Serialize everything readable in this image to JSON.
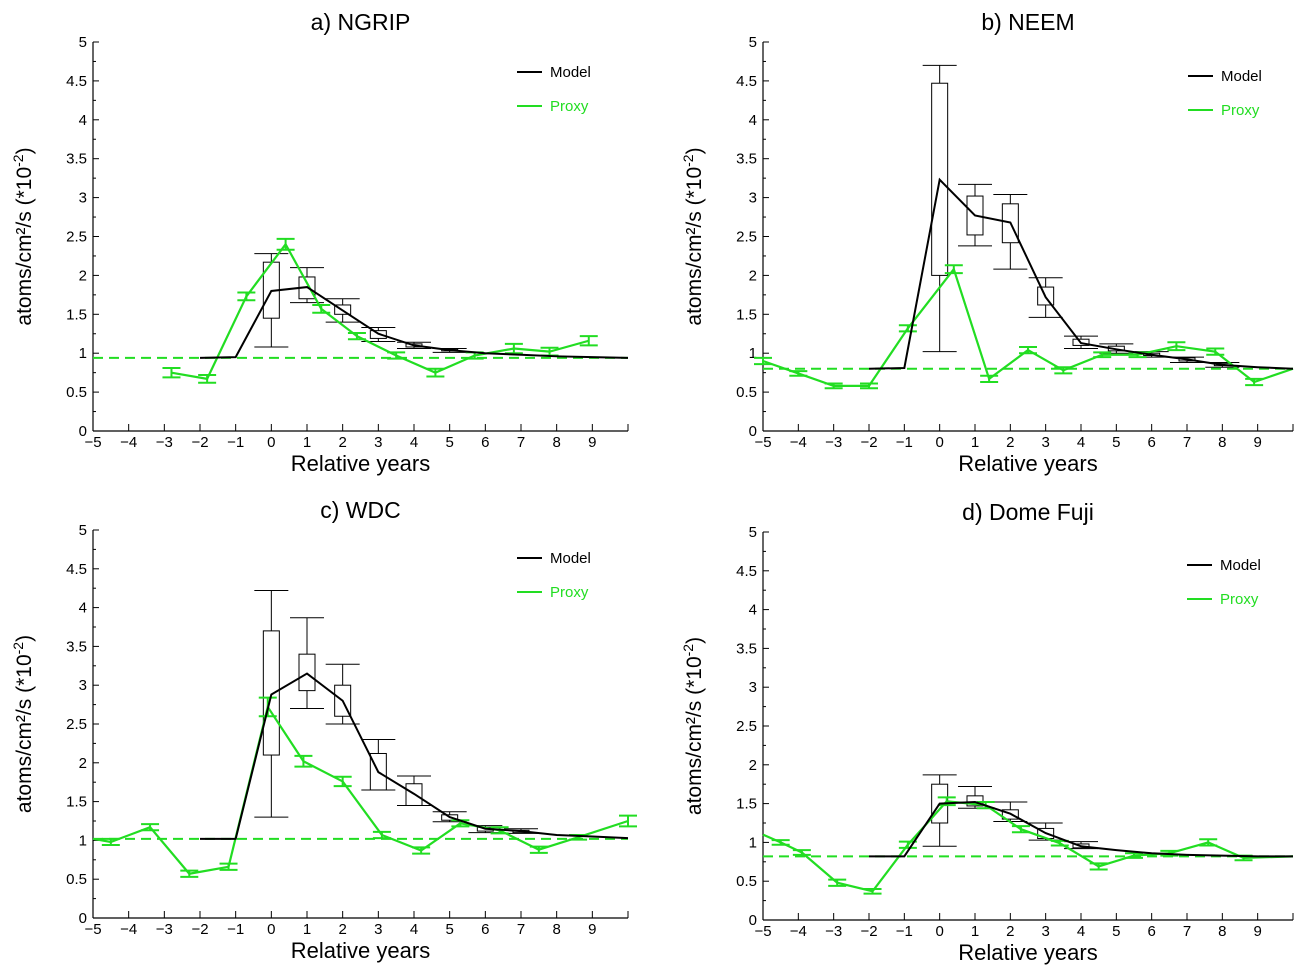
{
  "chart_data": [
    {
      "type": "line",
      "title": "a) NGRIP",
      "xlabel": "Relative years",
      "ylabel": "atoms/cm²/s (*10",
      "ylabel_exp": "-2",
      "ylabel_close": ")",
      "xlim": [
        -5,
        10
      ],
      "ylim": [
        0,
        5
      ],
      "xticks": [
        -5,
        -4,
        -3,
        -2,
        -1,
        0,
        1,
        2,
        3,
        4,
        5,
        6,
        7,
        8,
        9
      ],
      "yticks": [
        0,
        0.5,
        1,
        1.5,
        2,
        2.5,
        3,
        3.5,
        4,
        4.5,
        5
      ],
      "ytick_labels": [
        "0",
        "0.5",
        "1",
        "1.5",
        "2",
        "2.5",
        "3",
        "3.5",
        "4",
        "4.5",
        "5"
      ],
      "baseline": 0.94,
      "legend": [
        {
          "name": "Model",
          "color": "#000000"
        },
        {
          "name": "Proxy",
          "color": "#22dd22"
        }
      ],
      "model_line": {
        "x": [
          -2,
          -1,
          0,
          1,
          2,
          3,
          4,
          5,
          6,
          7,
          8,
          9,
          10
        ],
        "y": [
          0.94,
          0.95,
          1.8,
          1.85,
          1.55,
          1.25,
          1.1,
          1.04,
          1.0,
          0.98,
          0.96,
          0.95,
          0.94
        ]
      },
      "model_boxes": [
        {
          "x": 0,
          "q1": 1.45,
          "q3": 2.17,
          "low": 1.08,
          "high": 2.28
        },
        {
          "x": 1,
          "q1": 1.7,
          "q3": 1.98,
          "low": 1.65,
          "high": 2.1
        },
        {
          "x": 2,
          "q1": 1.5,
          "q3": 1.62,
          "low": 1.4,
          "high": 1.7
        },
        {
          "x": 3,
          "q1": 1.19,
          "q3": 1.29,
          "low": 1.15,
          "high": 1.33
        },
        {
          "x": 4,
          "q1": 1.08,
          "q3": 1.12,
          "low": 1.06,
          "high": 1.14
        },
        {
          "x": 5,
          "q1": 1.03,
          "q3": 1.05,
          "low": 1.01,
          "high": 1.06
        }
      ],
      "proxy": {
        "x": [
          -2.8,
          -1.8,
          -0.7,
          0.4,
          1.4,
          2.4,
          3.5,
          4.6,
          5.7,
          6.8,
          7.8,
          8.9
        ],
        "y": [
          0.75,
          0.67,
          1.73,
          2.4,
          1.57,
          1.22,
          0.97,
          0.75,
          0.97,
          1.06,
          1.02,
          1.16
        ],
        "err": [
          0.06,
          0.05,
          0.05,
          0.07,
          0.05,
          0.04,
          0.04,
          0.05,
          0.04,
          0.06,
          0.05,
          0.06
        ]
      }
    },
    {
      "type": "line",
      "title": "b) NEEM",
      "xlabel": "Relative years",
      "ylabel": "atoms/cm²/s (*10",
      "ylabel_exp": "-2",
      "ylabel_close": ")",
      "xlim": [
        -5,
        10
      ],
      "ylim": [
        0,
        5
      ],
      "xticks": [
        -5,
        -4,
        -3,
        -2,
        -1,
        0,
        1,
        2,
        3,
        4,
        5,
        6,
        7,
        8,
        9
      ],
      "yticks": [
        0,
        0.5,
        1,
        1.5,
        2,
        2.5,
        3,
        3.5,
        4,
        4.5,
        5
      ],
      "ytick_labels": [
        "0",
        "0.5",
        "1",
        "1.5",
        "2",
        "2.5",
        "3",
        "3.5",
        "4",
        "4.5",
        "5"
      ],
      "baseline": 0.8,
      "legend": [
        {
          "name": "Model",
          "color": "#000000"
        },
        {
          "name": "Proxy",
          "color": "#22dd22"
        }
      ],
      "model_line": {
        "x": [
          -2,
          -1,
          0,
          1,
          2,
          3,
          4,
          5,
          6,
          7,
          8,
          9,
          10
        ],
        "y": [
          0.8,
          0.81,
          3.23,
          2.77,
          2.68,
          1.72,
          1.13,
          1.05,
          0.98,
          0.92,
          0.85,
          0.82,
          0.8
        ]
      },
      "model_boxes": [
        {
          "x": 0,
          "q1": 2.0,
          "q3": 4.47,
          "low": 1.02,
          "high": 4.7
        },
        {
          "x": 1,
          "q1": 2.52,
          "q3": 3.02,
          "low": 2.38,
          "high": 3.17
        },
        {
          "x": 2,
          "q1": 2.42,
          "q3": 2.92,
          "low": 2.08,
          "high": 3.04
        },
        {
          "x": 3,
          "q1": 1.62,
          "q3": 1.85,
          "low": 1.46,
          "high": 1.97
        },
        {
          "x": 4,
          "q1": 1.1,
          "q3": 1.18,
          "low": 1.06,
          "high": 1.22
        },
        {
          "x": 5,
          "q1": 1.03,
          "q3": 1.09,
          "low": 1.0,
          "high": 1.12
        },
        {
          "x": 6,
          "q1": 0.97,
          "q3": 1.0,
          "low": 0.95,
          "high": 1.02
        },
        {
          "x": 7,
          "q1": 0.9,
          "q3": 0.94,
          "low": 0.88,
          "high": 0.95
        },
        {
          "x": 8,
          "q1": 0.84,
          "q3": 0.87,
          "low": 0.82,
          "high": 0.88
        }
      ],
      "proxy": {
        "x": [
          -5,
          -4,
          -3,
          -2,
          -0.9,
          0.4,
          1.4,
          2.5,
          3.5,
          4.6,
          5.6,
          6.7,
          7.8,
          8.9,
          10
        ],
        "y": [
          0.9,
          0.74,
          0.58,
          0.58,
          1.32,
          2.08,
          0.67,
          1.04,
          0.78,
          0.98,
          0.98,
          1.09,
          1.02,
          0.63,
          0.8
        ],
        "err": [
          0.04,
          0.03,
          0.03,
          0.03,
          0.04,
          0.05,
          0.04,
          0.04,
          0.04,
          0.03,
          0.03,
          0.05,
          0.04,
          0.04,
          0.0
        ]
      }
    },
    {
      "type": "line",
      "title": "c) WDC",
      "xlabel": "Relative years",
      "ylabel": "atoms/cm²/s (*10",
      "ylabel_exp": "-2",
      "ylabel_close": ")",
      "xlim": [
        -5,
        10
      ],
      "ylim": [
        0,
        5
      ],
      "xticks": [
        -5,
        -4,
        -3,
        -2,
        -1,
        0,
        1,
        2,
        3,
        4,
        5,
        6,
        7,
        8,
        9
      ],
      "yticks": [
        0,
        0.5,
        1,
        1.5,
        2,
        2.5,
        3,
        3.5,
        4,
        4.5,
        5
      ],
      "ytick_labels": [
        "0",
        "0.5",
        "1",
        "1.5",
        "2",
        "2.5",
        "3",
        "3.5",
        "4",
        "4.5",
        "5"
      ],
      "baseline": 1.02,
      "legend": [
        {
          "name": "Model",
          "color": "#000000"
        },
        {
          "name": "Proxy",
          "color": "#22dd22"
        }
      ],
      "model_line": {
        "x": [
          -2,
          -1,
          0,
          1,
          2,
          3,
          4,
          5,
          6,
          7,
          8,
          9,
          10
        ],
        "y": [
          1.02,
          1.02,
          2.88,
          3.15,
          2.8,
          1.88,
          1.6,
          1.3,
          1.15,
          1.12,
          1.07,
          1.05,
          1.03
        ]
      },
      "model_boxes": [
        {
          "x": 0,
          "q1": 2.1,
          "q3": 3.7,
          "low": 1.3,
          "high": 4.22
        },
        {
          "x": 1,
          "q1": 2.93,
          "q3": 3.4,
          "low": 2.7,
          "high": 3.87
        },
        {
          "x": 2,
          "q1": 2.6,
          "q3": 3.0,
          "low": 2.5,
          "high": 3.27
        },
        {
          "x": 3,
          "q1": 1.65,
          "q3": 2.12,
          "low": 1.65,
          "high": 2.3
        },
        {
          "x": 4,
          "q1": 1.45,
          "q3": 1.73,
          "low": 1.45,
          "high": 1.83
        },
        {
          "x": 5,
          "q1": 1.26,
          "q3": 1.33,
          "low": 1.24,
          "high": 1.37
        },
        {
          "x": 6,
          "q1": 1.12,
          "q3": 1.17,
          "low": 1.1,
          "high": 1.19
        },
        {
          "x": 7,
          "q1": 1.1,
          "q3": 1.13,
          "low": 1.09,
          "high": 1.15
        }
      ],
      "proxy": {
        "x": [
          -5,
          -4.5,
          -3.4,
          -2.3,
          -1.2,
          -0.1,
          0.9,
          2.0,
          3.1,
          4.2,
          5.3,
          6.4,
          7.5,
          8.6,
          10
        ],
        "y": [
          1.02,
          0.98,
          1.17,
          0.57,
          0.66,
          2.72,
          2.02,
          1.76,
          1.07,
          0.87,
          1.22,
          1.13,
          0.88,
          1.04,
          1.25
        ],
        "err": [
          0.0,
          0.04,
          0.04,
          0.04,
          0.04,
          0.12,
          0.07,
          0.06,
          0.04,
          0.04,
          0.04,
          0.04,
          0.04,
          0.03,
          0.07
        ]
      }
    },
    {
      "type": "line",
      "title": "d) Dome Fuji",
      "xlabel": "Relative years",
      "ylabel": "atoms/cm²/s (*10",
      "ylabel_exp": "-2",
      "ylabel_close": ")",
      "xlim": [
        -5,
        10
      ],
      "ylim": [
        0,
        5
      ],
      "xticks": [
        -5,
        -4,
        -3,
        -2,
        -1,
        0,
        1,
        2,
        3,
        4,
        5,
        6,
        7,
        8,
        9
      ],
      "yticks": [
        0,
        0.5,
        1,
        1.5,
        2,
        2.5,
        3,
        3.5,
        4,
        4.5,
        5
      ],
      "ytick_labels": [
        "0",
        "0.5",
        "1",
        "1.5",
        "2",
        "2.5",
        "3",
        "3.5",
        "4",
        "4.5",
        "5"
      ],
      "baseline": 0.82,
      "legend": [
        {
          "name": "Model",
          "color": "#000000"
        },
        {
          "name": "Proxy",
          "color": "#22dd22"
        }
      ],
      "model_line": {
        "x": [
          -2,
          -1,
          0,
          1,
          2,
          3,
          4,
          5,
          6,
          7,
          8,
          9,
          10
        ],
        "y": [
          0.82,
          0.82,
          1.5,
          1.52,
          1.37,
          1.12,
          0.95,
          0.9,
          0.86,
          0.84,
          0.83,
          0.82,
          0.82
        ]
      },
      "model_boxes": [
        {
          "x": 0,
          "q1": 1.25,
          "q3": 1.75,
          "low": 0.95,
          "high": 1.87
        },
        {
          "x": 1,
          "q1": 1.47,
          "q3": 1.6,
          "low": 1.44,
          "high": 1.72
        },
        {
          "x": 2,
          "q1": 1.3,
          "q3": 1.42,
          "low": 1.27,
          "high": 1.52
        },
        {
          "x": 3,
          "q1": 1.05,
          "q3": 1.18,
          "low": 1.03,
          "high": 1.25
        },
        {
          "x": 4,
          "q1": 0.93,
          "q3": 0.98,
          "low": 0.92,
          "high": 1.01
        }
      ],
      "proxy": {
        "x": [
          -5,
          -4.5,
          -3.9,
          -2.9,
          -1.9,
          -0.9,
          0.2,
          1.3,
          2.3,
          3.4,
          4.5,
          5.5,
          6.5,
          7.6,
          8.6,
          10
        ],
        "y": [
          1.1,
          1.0,
          0.87,
          0.48,
          0.37,
          0.97,
          1.53,
          1.48,
          1.17,
          0.99,
          0.69,
          0.83,
          0.86,
          1.0,
          0.8,
          0.82
        ],
        "err": [
          0.0,
          0.03,
          0.03,
          0.04,
          0.03,
          0.04,
          0.05,
          0.04,
          0.04,
          0.03,
          0.04,
          0.03,
          0.03,
          0.04,
          0.03,
          0.0
        ]
      }
    }
  ]
}
